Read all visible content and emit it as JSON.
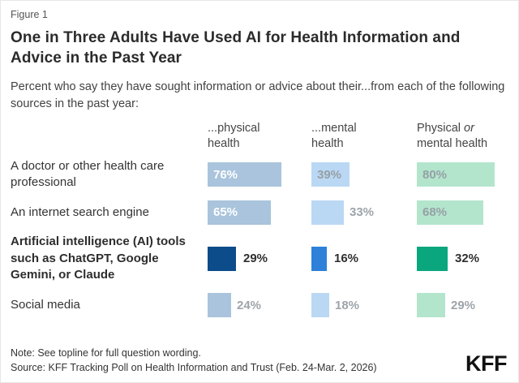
{
  "figure": {
    "label": "Figure 1",
    "title": "One in Three Adults Have Used AI for Health Information and Advice in the Past Year",
    "subtitle": "Percent who say they have sought information or advice about their...from each of the following sources in the past year:"
  },
  "chart_data": {
    "type": "bar",
    "orientation": "horizontal",
    "value_suffix": "%",
    "headers": {
      "col1": "...physical health",
      "col2": "...mental health",
      "col3_pre": "Physical",
      "col3_italic": "or",
      "col3_post": "mental health"
    },
    "categories": [
      "A doctor or other health care professional",
      "An internet search engine",
      "Artificial intelligence (AI) tools such as ChatGPT, Google Gemini, or Claude",
      "Social media"
    ],
    "highlighted_category": "Artificial intelligence (AI) tools such as ChatGPT, Google Gemini, or Claude",
    "series": [
      {
        "name": "...physical health",
        "values": [
          76,
          65,
          29,
          24
        ]
      },
      {
        "name": "...mental health",
        "values": [
          39,
          33,
          16,
          18
        ]
      },
      {
        "name": "Physical or mental health",
        "values": [
          80,
          68,
          32,
          29
        ]
      }
    ],
    "colors": {
      "physical_light": "#a9c4dc",
      "physical_highlight": "#0d4c8a",
      "mental_light": "#bad8f4",
      "mental_highlight": "#2e80d8",
      "combined_light": "#b3e5cd",
      "combined_highlight": "#0aa67e"
    },
    "value_label_styles": [
      [
        "inside-white",
        "inside-muted",
        "inside-muted"
      ],
      [
        "inside-white",
        "outside-muted",
        "inside-muted"
      ],
      [
        "outside-dark",
        "outside-dark",
        "outside-dark"
      ],
      [
        "outside-muted",
        "outside-muted",
        "outside-muted"
      ]
    ],
    "axis": {
      "min": 0,
      "max": 100,
      "gridlines": false
    }
  },
  "footer": {
    "note": "Note: See topline for full question wording.",
    "source": "Source: KFF Tracking Poll on Health Information and Trust (Feb. 24-Mar. 2, 2026)",
    "logo": "KFF"
  }
}
